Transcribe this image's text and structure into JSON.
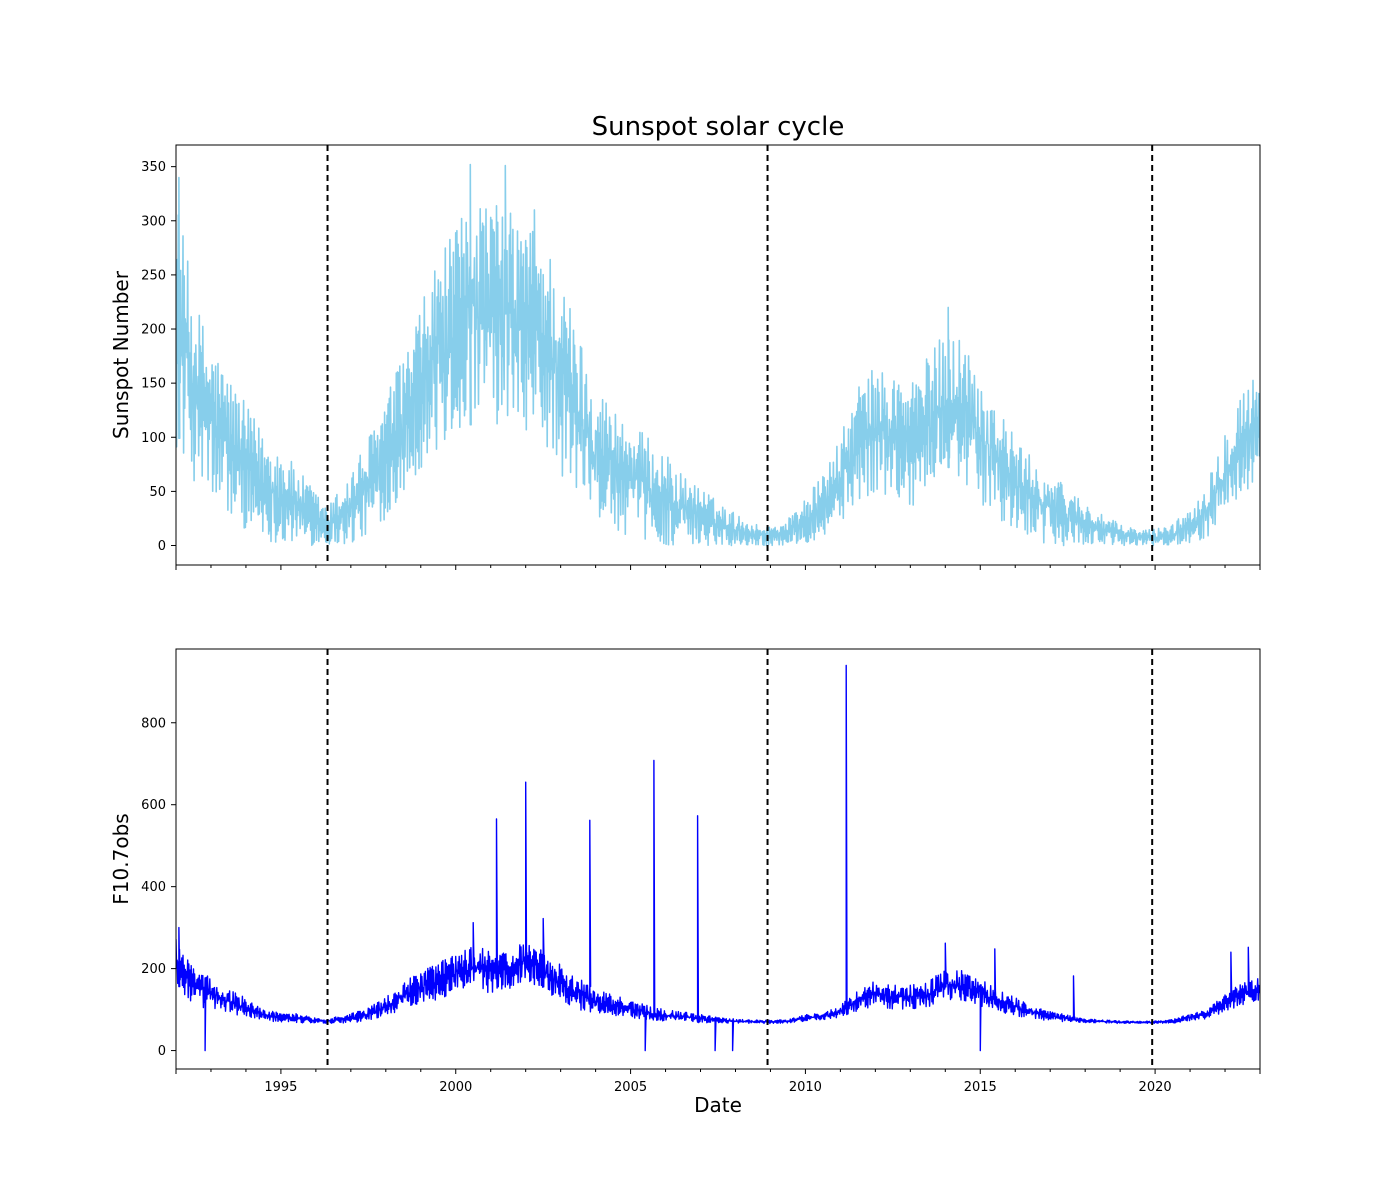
{
  "figure": {
    "title": "Sunspot solar cycle"
  },
  "chart_data": [
    {
      "type": "line",
      "panel": "top",
      "title": "Sunspot solar cycle",
      "xlabel": "",
      "ylabel": "Sunspot Number",
      "xlim": [
        "1992-01-01",
        "2023-01-01"
      ],
      "ylim": [
        -18,
        370
      ],
      "yticks": [
        0,
        50,
        100,
        150,
        200,
        250,
        300,
        350
      ],
      "xticks_labeled": false,
      "line_color": "#87ceeb",
      "grid": false,
      "legend": "none",
      "cycle_minima": [
        "1996-05-01",
        "2008-12-01",
        "2019-12-01"
      ],
      "envelope": [
        [
          "1992-01-01",
          90,
          330
        ],
        [
          "1992-07-01",
          60,
          230
        ],
        [
          "1993-01-01",
          40,
          190
        ],
        [
          "1993-07-01",
          25,
          160
        ],
        [
          "1994-01-01",
          15,
          130
        ],
        [
          "1994-07-01",
          5,
          105
        ],
        [
          "1995-01-01",
          2,
          90
        ],
        [
          "1995-07-01",
          0,
          70
        ],
        [
          "1996-01-01",
          0,
          50
        ],
        [
          "1996-05-01",
          0,
          35
        ],
        [
          "1997-01-01",
          0,
          70
        ],
        [
          "1997-07-01",
          10,
          100
        ],
        [
          "1998-01-01",
          25,
          140
        ],
        [
          "1998-07-01",
          50,
          175
        ],
        [
          "1999-01-01",
          70,
          220
        ],
        [
          "1999-07-01",
          85,
          270
        ],
        [
          "2000-01-01",
          100,
          290
        ],
        [
          "2000-07-01",
          110,
          330
        ],
        [
          "2001-01-01",
          105,
          320
        ],
        [
          "2001-07-01",
          110,
          310
        ],
        [
          "2002-01-01",
          105,
          300
        ],
        [
          "2002-07-01",
          90,
          290
        ],
        [
          "2003-01-01",
          65,
          250
        ],
        [
          "2003-07-01",
          40,
          200
        ],
        [
          "2004-01-01",
          25,
          150
        ],
        [
          "2004-07-01",
          15,
          130
        ],
        [
          "2005-01-01",
          8,
          115
        ],
        [
          "2005-07-01",
          4,
          100
        ],
        [
          "2006-01-01",
          0,
          85
        ],
        [
          "2006-07-01",
          0,
          65
        ],
        [
          "2007-01-01",
          0,
          55
        ],
        [
          "2007-07-01",
          0,
          40
        ],
        [
          "2008-01-01",
          0,
          30
        ],
        [
          "2008-07-01",
          0,
          20
        ],
        [
          "2009-01-01",
          0,
          18
        ],
        [
          "2009-07-01",
          0,
          25
        ],
        [
          "2010-01-01",
          2,
          45
        ],
        [
          "2010-07-01",
          8,
          65
        ],
        [
          "2011-01-01",
          20,
          100
        ],
        [
          "2011-07-01",
          40,
          150
        ],
        [
          "2012-01-01",
          50,
          165
        ],
        [
          "2012-07-01",
          45,
          160
        ],
        [
          "2013-01-01",
          35,
          155
        ],
        [
          "2013-07-01",
          45,
          175
        ],
        [
          "2014-01-01",
          65,
          200
        ],
        [
          "2014-07-01",
          60,
          195
        ],
        [
          "2015-01-01",
          40,
          160
        ],
        [
          "2015-07-01",
          22,
          130
        ],
        [
          "2016-01-01",
          12,
          100
        ],
        [
          "2016-07-01",
          5,
          80
        ],
        [
          "2017-01-01",
          0,
          65
        ],
        [
          "2017-07-01",
          0,
          55
        ],
        [
          "2018-01-01",
          0,
          40
        ],
        [
          "2018-07-01",
          0,
          28
        ],
        [
          "2019-01-01",
          0,
          20
        ],
        [
          "2019-07-01",
          0,
          15
        ],
        [
          "2019-12-01",
          0,
          15
        ],
        [
          "2020-07-01",
          0,
          20
        ],
        [
          "2021-01-01",
          2,
          35
        ],
        [
          "2021-07-01",
          8,
          60
        ],
        [
          "2022-01-01",
          25,
          110
        ],
        [
          "2022-07-01",
          45,
          150
        ],
        [
          "2023-01-01",
          55,
          160
        ]
      ],
      "spikes": [
        [
          "1992-02-01",
          340
        ],
        [
          "2000-06-01",
          352
        ],
        [
          "2001-06-01",
          351
        ],
        [
          "2002-04-01",
          310
        ],
        [
          "2014-02-01",
          220
        ]
      ]
    },
    {
      "type": "line",
      "panel": "bottom",
      "title": "",
      "xlabel": "Date",
      "ylabel": "F10.7obs",
      "xlim": [
        "1992-01-01",
        "2023-01-01"
      ],
      "ylim": [
        -45,
        980
      ],
      "yticks": [
        0,
        200,
        400,
        600,
        800
      ],
      "xticks": [
        1995,
        2000,
        2005,
        2010,
        2015,
        2020
      ],
      "line_color": "#0000ff",
      "grid": false,
      "legend": "none",
      "cycle_minima": [
        "1996-05-01",
        "2008-12-01",
        "2019-12-01"
      ],
      "envelope": [
        [
          "1992-01-01",
          150,
          290
        ],
        [
          "1992-07-01",
          110,
          200
        ],
        [
          "1993-01-01",
          100,
          180
        ],
        [
          "1993-07-01",
          90,
          150
        ],
        [
          "1994-01-01",
          80,
          130
        ],
        [
          "1994-07-01",
          72,
          100
        ],
        [
          "1995-01-01",
          70,
          92
        ],
        [
          "1995-07-01",
          68,
          90
        ],
        [
          "1996-01-01",
          67,
          80
        ],
        [
          "1996-05-01",
          66,
          78
        ],
        [
          "1997-01-01",
          68,
          90
        ],
        [
          "1997-07-01",
          72,
          105
        ],
        [
          "1998-01-01",
          85,
          130
        ],
        [
          "1998-07-01",
          100,
          165
        ],
        [
          "1999-01-01",
          115,
          195
        ],
        [
          "1999-07-01",
          125,
          220
        ],
        [
          "2000-01-01",
          140,
          240
        ],
        [
          "2000-07-01",
          150,
          255
        ],
        [
          "2001-01-01",
          140,
          245
        ],
        [
          "2001-07-01",
          145,
          240
        ],
        [
          "2002-01-01",
          170,
          270
        ],
        [
          "2002-07-01",
          150,
          245
        ],
        [
          "2003-01-01",
          120,
          210
        ],
        [
          "2003-07-01",
          100,
          180
        ],
        [
          "2004-01-01",
          90,
          150
        ],
        [
          "2004-07-01",
          85,
          135
        ],
        [
          "2005-01-01",
          80,
          125
        ],
        [
          "2005-07-01",
          75,
          110
        ],
        [
          "2006-01-01",
          72,
          100
        ],
        [
          "2006-07-01",
          70,
          95
        ],
        [
          "2007-01-01",
          68,
          88
        ],
        [
          "2007-07-01",
          67,
          82
        ],
        [
          "2008-01-01",
          66,
          78
        ],
        [
          "2008-07-01",
          66,
          75
        ],
        [
          "2009-01-01",
          66,
          74
        ],
        [
          "2009-07-01",
          67,
          76
        ],
        [
          "2010-01-01",
          72,
          88
        ],
        [
          "2010-07-01",
          75,
          92
        ],
        [
          "2011-01-01",
          80,
          110
        ],
        [
          "2011-07-01",
          95,
          150
        ],
        [
          "2012-01-01",
          110,
          175
        ],
        [
          "2012-07-01",
          100,
          160
        ],
        [
          "2013-01-01",
          100,
          160
        ],
        [
          "2013-07-01",
          105,
          170
        ],
        [
          "2014-01-01",
          120,
          200
        ],
        [
          "2014-07-01",
          120,
          195
        ],
        [
          "2015-01-01",
          105,
          180
        ],
        [
          "2015-07-01",
          95,
          150
        ],
        [
          "2016-01-01",
          85,
          130
        ],
        [
          "2016-07-01",
          78,
          110
        ],
        [
          "2017-01-01",
          72,
          95
        ],
        [
          "2017-07-01",
          70,
          88
        ],
        [
          "2018-01-01",
          68,
          78
        ],
        [
          "2018-07-01",
          67,
          75
        ],
        [
          "2019-01-01",
          66,
          73
        ],
        [
          "2019-07-01",
          66,
          72
        ],
        [
          "2019-12-01",
          66,
          72
        ],
        [
          "2020-07-01",
          67,
          76
        ],
        [
          "2021-01-01",
          72,
          90
        ],
        [
          "2021-07-01",
          78,
          100
        ],
        [
          "2022-01-01",
          95,
          140
        ],
        [
          "2022-07-01",
          110,
          165
        ],
        [
          "2023-01-01",
          120,
          180
        ]
      ],
      "spikes": [
        [
          "1992-02-01",
          300
        ],
        [
          "1992-11-01",
          0
        ],
        [
          "2000-07-01",
          312
        ],
        [
          "2001-03-01",
          565
        ],
        [
          "2002-01-01",
          655
        ],
        [
          "2002-07-01",
          322
        ],
        [
          "2003-11-01",
          562
        ],
        [
          "2005-06-01",
          0
        ],
        [
          "2005-09-01",
          708
        ],
        [
          "2006-12-01",
          573
        ],
        [
          "2007-06-01",
          0
        ],
        [
          "2007-12-01",
          0
        ],
        [
          "2011-03-01",
          940
        ],
        [
          "2014-01-01",
          262
        ],
        [
          "2015-01-01",
          0
        ],
        [
          "2015-06-01",
          248
        ],
        [
          "2017-09-01",
          182
        ],
        [
          "2022-03-01",
          240
        ],
        [
          "2022-09-01",
          252
        ]
      ]
    }
  ]
}
